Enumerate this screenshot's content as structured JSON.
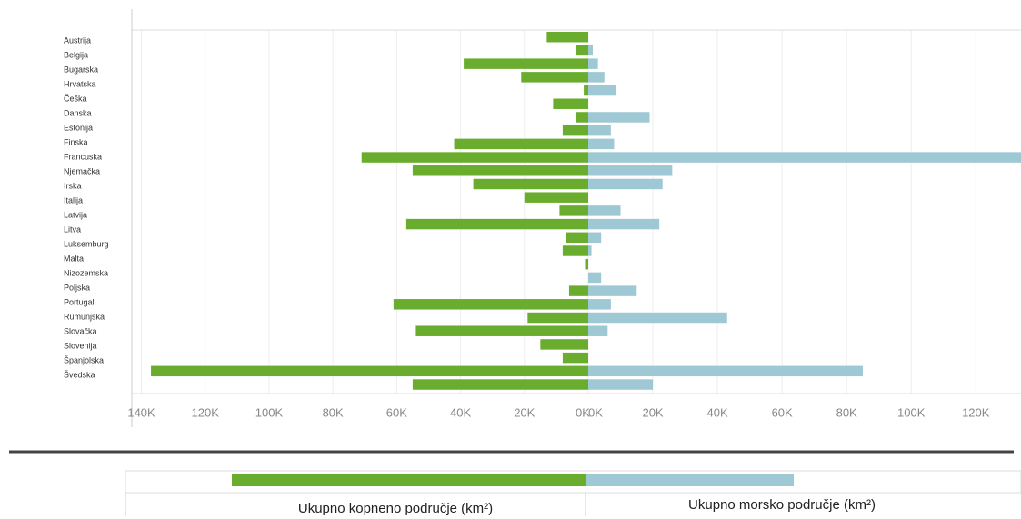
{
  "chart_data": {
    "type": "butterfly-bar",
    "categories": [
      "Austrija",
      "Belgija",
      "Bugarska",
      "Hrvatska",
      "Češka",
      "Danska",
      "Estonija",
      "Finska",
      "Francuska",
      "Njemačka",
      "Irska",
      "Italija",
      "Latvija",
      "Litva",
      "Luksemburg",
      "Malta",
      "Nizozemska",
      "Poljska",
      "Portugal",
      "Rumunjska",
      "Slovačka",
      "Slovenija",
      "Španjolska",
      "Švedska",
      null,
      null,
      null
    ],
    "series": [
      {
        "name": "Ukupno kopneno područje (km²)",
        "color": "#6aad2e",
        "axis": "x",
        "values": [
          13,
          4,
          39,
          21,
          1.4,
          11,
          4,
          8,
          42,
          71,
          55,
          36,
          20,
          9,
          57,
          7,
          8,
          1,
          null,
          6,
          61,
          19,
          54,
          15,
          8,
          137,
          55
        ]
      },
      {
        "name": "Ukupno morsko područje (km²)",
        "color": "#9ec8d4",
        "axis": "x2",
        "values": [
          null,
          1.4,
          3,
          5,
          8.5,
          null,
          19,
          7,
          8,
          134,
          26,
          23,
          null,
          10,
          22,
          4,
          1,
          null,
          4,
          15,
          7,
          43,
          6,
          null,
          null,
          85,
          20
        ]
      }
    ],
    "xlim": [
      0,
      143
    ],
    "xticks": [
      {
        "value": 140,
        "label": "140K"
      },
      {
        "value": 120,
        "label": "120K"
      },
      {
        "value": 100,
        "label": "100K"
      },
      {
        "value": 80,
        "label": "80K"
      },
      {
        "value": 60,
        "label": "60K"
      },
      {
        "value": 40,
        "label": "40K"
      },
      {
        "value": 20,
        "label": "20K"
      },
      {
        "value": 0,
        "label": "0K"
      }
    ],
    "x2lim": [
      0,
      134
    ],
    "x2ticks": [
      {
        "value": 0,
        "label": "0K"
      },
      {
        "value": 20,
        "label": "20K"
      },
      {
        "value": 40,
        "label": "40K"
      },
      {
        "value": 60,
        "label": "60K"
      },
      {
        "value": 80,
        "label": "80K"
      },
      {
        "value": 100,
        "label": "100K"
      },
      {
        "value": 120,
        "label": "120K"
      }
    ],
    "grid": true
  }
}
